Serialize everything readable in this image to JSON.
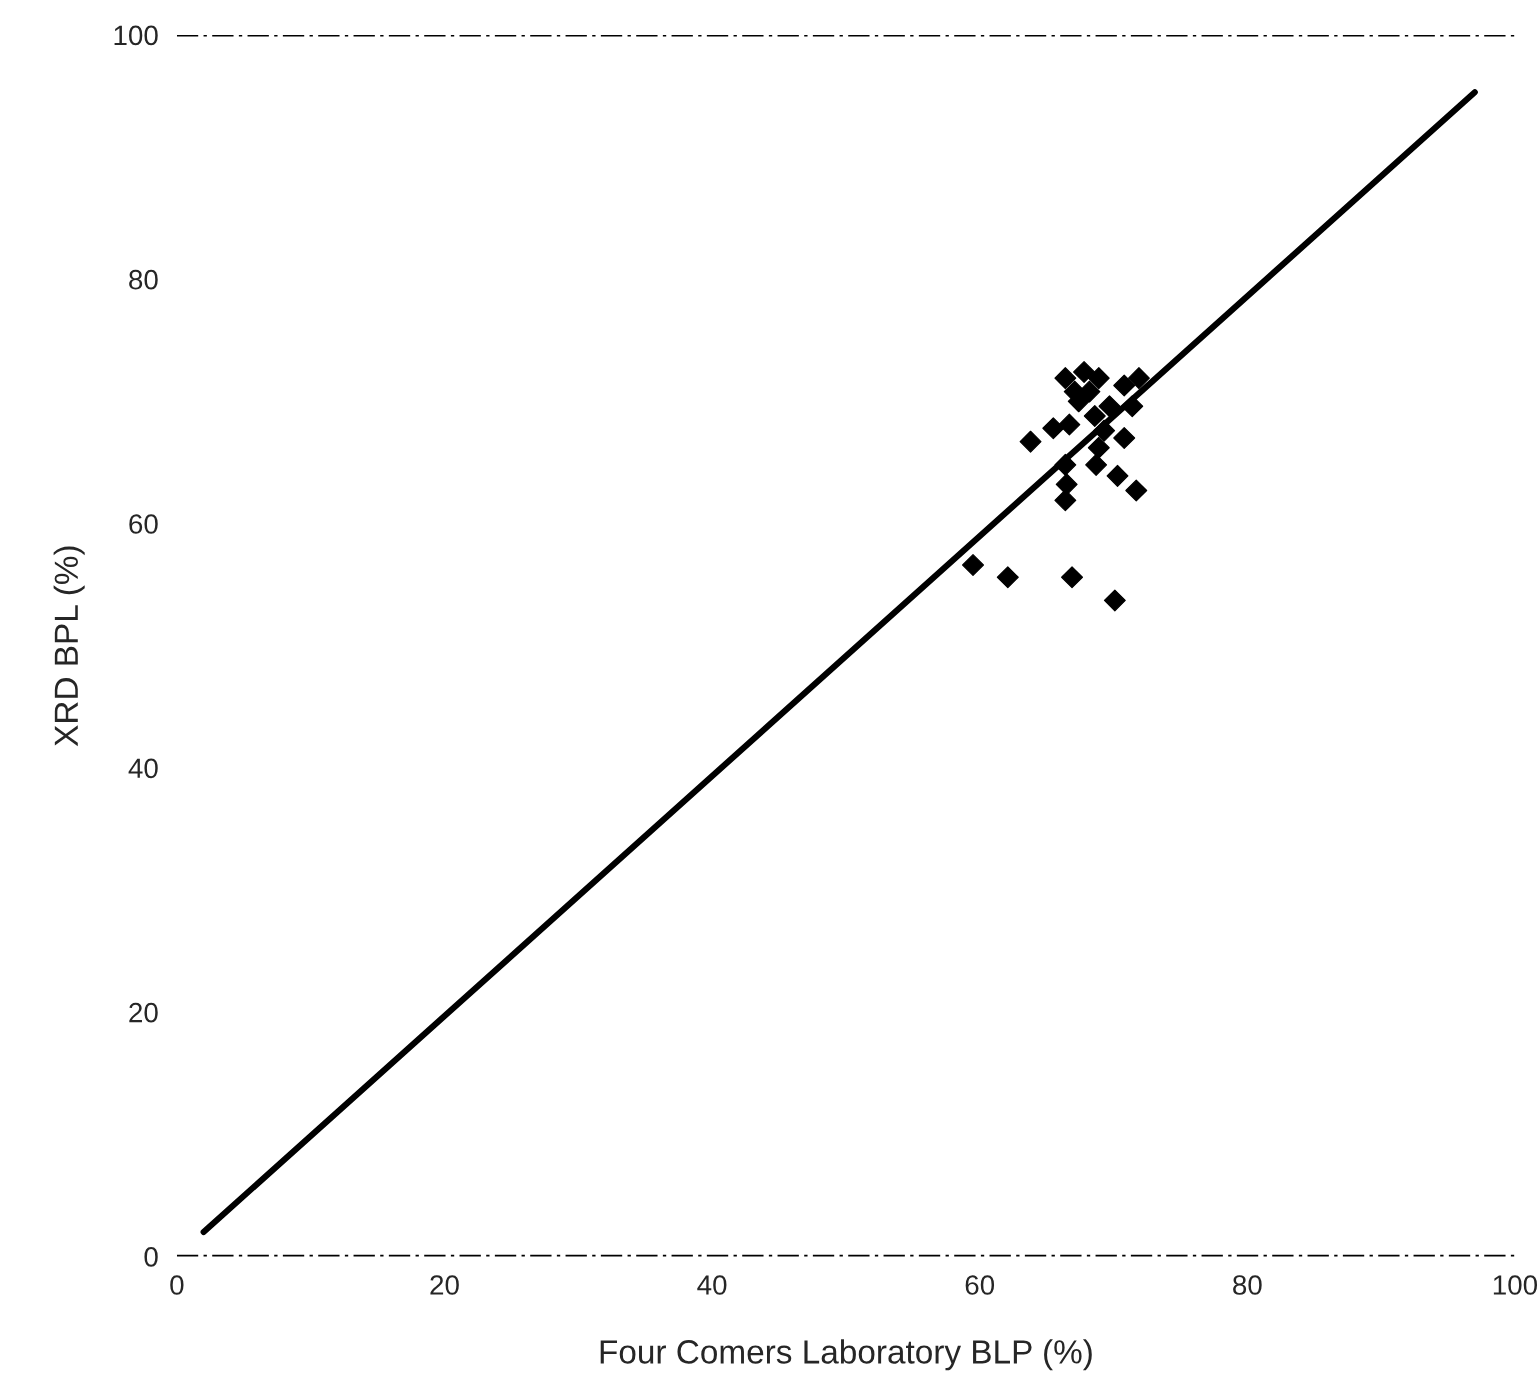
{
  "chart_data": {
    "type": "scatter",
    "xlabel": "Four Comers Laboratory BLP (%)",
    "ylabel": "XRD BPL (%)",
    "xlim": [
      0,
      100
    ],
    "ylim": [
      0,
      100
    ],
    "xticks": [
      0,
      20,
      40,
      60,
      80,
      100
    ],
    "yticks": [
      0,
      20,
      40,
      60,
      80,
      100
    ],
    "grid": false,
    "legend": false,
    "series": [
      {
        "color": "#000000",
        "marker": "diamond",
        "x": [
          59.5,
          62.1,
          66.9,
          70.1,
          63.8,
          65.5,
          66.7,
          66.4,
          67.8,
          68.9,
          68.2,
          67.4,
          69.7,
          68.6,
          69.3,
          70.8,
          68.9,
          68.7,
          70.3,
          71.7,
          66.4,
          66.5,
          66.4,
          70.8,
          71.9,
          71.4,
          67.1
        ],
        "values": [
          56.6,
          55.6,
          55.6,
          53.7,
          66.7,
          67.8,
          68.1,
          71.9,
          72.4,
          71.9,
          70.8,
          70.0,
          69.6,
          68.8,
          67.6,
          67.0,
          66.2,
          64.8,
          63.9,
          62.7,
          64.8,
          63.2,
          61.9,
          71.3,
          71.9,
          69.6,
          70.8
        ]
      },
      {
        "type": "line",
        "color": "#000000",
        "marker": "none",
        "line_style": "solid",
        "x": [
          2,
          97
        ],
        "values": [
          2,
          95.3
        ]
      }
    ],
    "ref_lines": [
      {
        "axis": "y",
        "value": 0,
        "color": "#000000",
        "line_style": "dashdot"
      },
      {
        "axis": "y",
        "value": 100,
        "color": "#000000",
        "line_style": "dashdot"
      }
    ]
  }
}
